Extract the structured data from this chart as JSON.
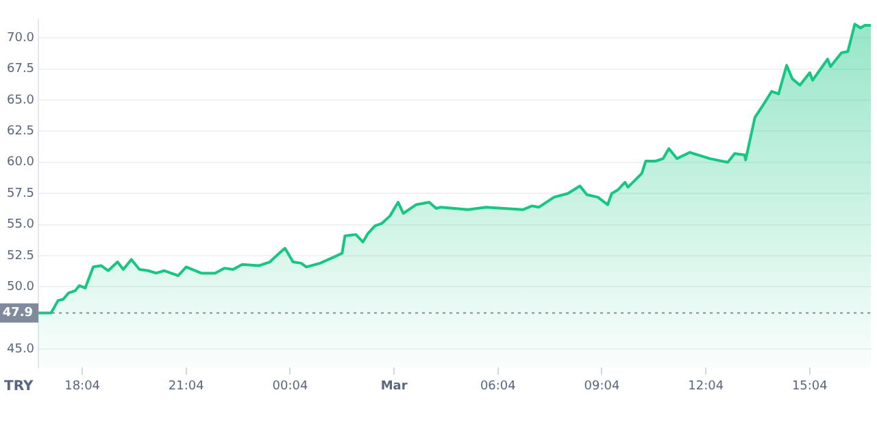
{
  "chart_data": {
    "type": "area",
    "ylabel": "TRY",
    "x": [
      "--02-28T16:48",
      "--02-28T17:10",
      "--02-28T17:22",
      "--02-28T17:31",
      "--02-28T17:40",
      "--02-28T17:52",
      "--02-28T17:59",
      "--02-28T18:09",
      "--02-28T18:23",
      "--02-28T18:37",
      "--02-28T18:49",
      "--02-28T19:05",
      "--02-28T19:15",
      "--02-28T19:29",
      "--02-28T19:43",
      "--02-28T19:58",
      "--02-28T20:12",
      "--02-28T20:26",
      "--02-28T20:50",
      "--02-28T21:04",
      "--02-28T21:30",
      "--02-28T21:54",
      "--02-28T22:10",
      "--02-28T22:25",
      "--02-28T22:41",
      "--02-28T23:10",
      "--02-28T23:29",
      "--02-28T23:38",
      "--02-28T23:55",
      "--03-01T00:09",
      "--03-01T00:23",
      "--03-01T00:32",
      "--03-01T00:56",
      "--03-01T01:20",
      "--03-01T01:34",
      "--03-01T01:39",
      "--03-01T01:58",
      "--03-01T02:10",
      "--03-01T02:19",
      "--03-01T02:31",
      "--03-01T02:43",
      "--03-01T02:57",
      "--03-01T03:11",
      "--03-01T03:20",
      "--03-01T03:42",
      "--03-01T04:05",
      "--03-01T04:17",
      "--03-01T04:25",
      "--03-01T05:12",
      "--03-01T05:43",
      "--03-01T06:47",
      "--03-01T07:03",
      "--03-01T07:15",
      "--03-01T07:41",
      "--03-01T08:05",
      "--03-01T08:26",
      "--03-01T08:38",
      "--03-01T08:57",
      "--03-01T09:14",
      "--03-01T09:21",
      "--03-01T09:32",
      "--03-01T09:44",
      "--03-01T09:49",
      "--03-01T10:13",
      "--03-01T10:20",
      "--03-01T10:37",
      "--03-01T10:50",
      "--03-01T11:00",
      "--03-01T11:14",
      "--03-01T11:36",
      "--03-01T12:11",
      "--03-01T12:42",
      "--03-01T12:54",
      "--03-01T13:11",
      "--03-01T13:13",
      "--03-01T13:29",
      "--03-01T13:46",
      "--03-01T13:58",
      "--03-01T14:10",
      "--03-01T14:24",
      "--03-01T14:34",
      "--03-01T14:47",
      "--03-01T15:04",
      "--03-01T15:09",
      "--03-01T15:35",
      "--03-01T15:40",
      "--03-01T15:59",
      "--03-01T16:10",
      "--03-01T16:22",
      "--03-01T16:32",
      "--03-01T16:39",
      "--03-01T16:50"
    ],
    "values": [
      47.9,
      47.9,
      48.9,
      49.0,
      49.5,
      49.7,
      50.1,
      49.9,
      51.6,
      51.7,
      51.3,
      52.0,
      51.4,
      52.2,
      51.4,
      51.3,
      51.1,
      51.3,
      50.9,
      51.6,
      51.1,
      51.1,
      51.5,
      51.4,
      51.8,
      51.7,
      52.0,
      52.4,
      53.1,
      52.0,
      51.9,
      51.6,
      51.9,
      52.4,
      52.7,
      54.1,
      54.2,
      53.6,
      54.3,
      54.9,
      55.1,
      55.7,
      56.8,
      55.9,
      56.6,
      56.8,
      56.3,
      56.4,
      56.2,
      56.4,
      56.2,
      56.5,
      56.4,
      57.2,
      57.5,
      58.1,
      57.4,
      57.2,
      56.6,
      57.5,
      57.8,
      58.4,
      58.0,
      59.1,
      60.1,
      60.1,
      60.3,
      61.1,
      60.3,
      60.8,
      60.3,
      60.0,
      60.7,
      60.6,
      60.2,
      63.6,
      64.8,
      65.7,
      65.5,
      67.8,
      66.7,
      66.2,
      67.2,
      66.6,
      68.3,
      67.7,
      68.8,
      68.9,
      71.1,
      70.8,
      71.0,
      71.0
    ],
    "color": "#16c784",
    "xlim": [
      "--02-28T16:48",
      "--03-01T16:51"
    ],
    "xticks": [
      {
        "value": "--02-28T18:04",
        "label": "18:04"
      },
      {
        "value": "--02-28T21:04",
        "label": "21:04"
      },
      {
        "value": "--03-01T00:04",
        "label": "00:04"
      },
      {
        "value": "--03-01T03:04",
        "label": "Mar"
      },
      {
        "value": "--03-01T06:04",
        "label": "06:04"
      },
      {
        "value": "--03-01T09:04",
        "label": "09:04"
      },
      {
        "value": "--03-01T12:04",
        "label": "12:04"
      },
      {
        "value": "--03-01T15:04",
        "label": "15:04"
      }
    ],
    "ylim": [
      43.5,
      71.5
    ],
    "yticks": [
      {
        "value": 45,
        "label": "45.0"
      },
      {
        "value": 50,
        "label": "50.0"
      },
      {
        "value": 52.5,
        "label": "52.5"
      },
      {
        "value": 55,
        "label": "55.0"
      },
      {
        "value": 57.5,
        "label": "57.5"
      },
      {
        "value": 60,
        "label": "60.0"
      },
      {
        "value": 62.5,
        "label": "62.5"
      },
      {
        "value": 65,
        "label": "65.0"
      },
      {
        "value": 67.5,
        "label": "67.5"
      },
      {
        "value": 70,
        "label": "70.0"
      }
    ],
    "ref_lines": [
      {
        "axis": "y",
        "value": 47.9,
        "label": "47.9",
        "color": "#808a9d",
        "line_style": "dotted"
      }
    ],
    "grid": "y",
    "marker": "none",
    "line_style": "solid"
  }
}
